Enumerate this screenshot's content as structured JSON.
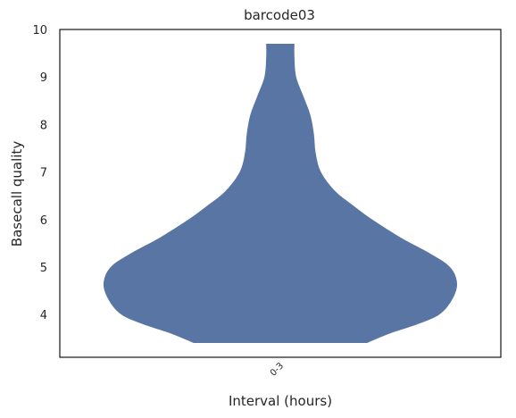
{
  "chart_data": {
    "type": "violin",
    "title": "barcode03",
    "xlabel": "Interval (hours)",
    "ylabel": "Basecall quality",
    "categories": [
      "0-3"
    ],
    "ylim": [
      3.1,
      10.0
    ],
    "yticks": [
      4,
      5,
      6,
      7,
      8,
      9,
      10
    ],
    "grid": false,
    "color": "#5875a4",
    "violin_range": [
      3.4,
      9.7
    ],
    "density_profile": [
      {
        "y": 3.4,
        "w": 0.49
      },
      {
        "y": 3.6,
        "w": 0.62
      },
      {
        "y": 3.8,
        "w": 0.78
      },
      {
        "y": 4.0,
        "w": 0.9
      },
      {
        "y": 4.3,
        "w": 0.97
      },
      {
        "y": 4.65,
        "w": 1.0
      },
      {
        "y": 5.0,
        "w": 0.96
      },
      {
        "y": 5.3,
        "w": 0.84
      },
      {
        "y": 5.6,
        "w": 0.69
      },
      {
        "y": 6.0,
        "w": 0.52
      },
      {
        "y": 6.3,
        "w": 0.41
      },
      {
        "y": 6.6,
        "w": 0.31
      },
      {
        "y": 7.0,
        "w": 0.23
      },
      {
        "y": 7.4,
        "w": 0.2
      },
      {
        "y": 7.8,
        "w": 0.19
      },
      {
        "y": 8.2,
        "w": 0.17
      },
      {
        "y": 8.6,
        "w": 0.13
      },
      {
        "y": 9.0,
        "w": 0.09
      },
      {
        "y": 9.4,
        "w": 0.08
      },
      {
        "y": 9.7,
        "w": 0.08
      }
    ]
  }
}
